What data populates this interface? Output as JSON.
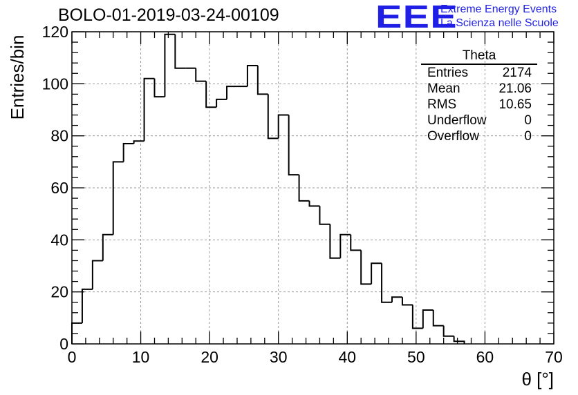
{
  "header": {
    "title": "BOLO-01-2019-03-24-00109",
    "logo_letters": "EEE",
    "logo_line1": "Extreme Energy Events",
    "logo_line2": "La Scienza nelle Scuole"
  },
  "stats": {
    "title": "Theta",
    "rows": [
      {
        "label": "Entries",
        "value": "2174"
      },
      {
        "label": "Mean",
        "value": "21.06"
      },
      {
        "label": "RMS",
        "value": "10.65"
      },
      {
        "label": "Underflow",
        "value": "0"
      },
      {
        "label": "Overflow",
        "value": "0"
      }
    ]
  },
  "chart_data": {
    "type": "bar",
    "histogram": true,
    "title": "BOLO-01-2019-03-24-00109",
    "xlabel": "θ [°]",
    "ylabel": "Entries/bin",
    "xlim": [
      0,
      70
    ],
    "ylim": [
      0,
      120
    ],
    "grid": true,
    "x_ticks": [
      0,
      10,
      20,
      30,
      40,
      50,
      60,
      70
    ],
    "y_ticks": [
      0,
      20,
      40,
      60,
      80,
      100,
      120
    ],
    "bin_edges": [
      0,
      1.5,
      3,
      4.5,
      6,
      7.5,
      9,
      10.5,
      12,
      13.5,
      15,
      16.5,
      18,
      19.5,
      21,
      22.5,
      24,
      25.5,
      27,
      28.5,
      30,
      31.5,
      33,
      34.5,
      36,
      37.5,
      39,
      40.5,
      42,
      43.5,
      45,
      46.5,
      48,
      49.5,
      51,
      52.5,
      54,
      55.5
    ],
    "values": [
      8,
      21,
      32,
      42,
      70,
      77,
      78,
      102,
      95,
      119,
      106,
      106,
      101,
      91,
      94,
      99,
      99,
      107,
      96,
      79,
      88,
      65,
      55,
      53,
      46,
      33,
      42,
      36,
      23,
      31,
      16,
      18,
      15,
      6,
      13,
      7,
      3,
      1
    ]
  }
}
